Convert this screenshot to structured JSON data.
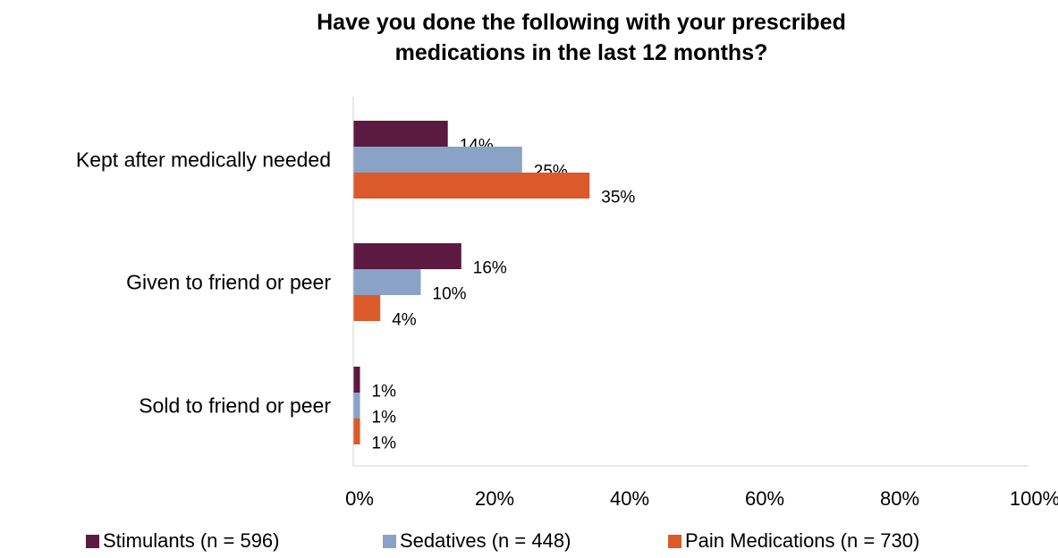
{
  "chart_data": {
    "type": "bar",
    "orientation": "horizontal",
    "title_lines": [
      "Have you done the following with your prescribed",
      "medications in the last 12 months?"
    ],
    "categories": [
      "Kept after medically needed",
      "Given to friend or peer",
      "Sold to friend or peer"
    ],
    "series": [
      {
        "name": "Stimulants (n = 596)",
        "values": [
          14,
          16,
          1
        ],
        "labels": [
          "14%",
          "16%",
          "1%"
        ],
        "color": "#5b1a40"
      },
      {
        "name": "Sedatives (n = 448)",
        "values": [
          25,
          10,
          1
        ],
        "labels": [
          "25%",
          "10%",
          "1%"
        ],
        "color": "#8aa2c6"
      },
      {
        "name": "Pain Medications (n = 730)",
        "values": [
          35,
          4,
          1
        ],
        "labels": [
          "35%",
          "4%",
          "1%"
        ],
        "color": "#dc5a2a"
      }
    ],
    "xlim": [
      0,
      100
    ],
    "xticks": [
      "0%",
      "20%",
      "40%",
      "60%",
      "80%",
      "100%"
    ],
    "grid": false,
    "legend_position": "bottom"
  }
}
